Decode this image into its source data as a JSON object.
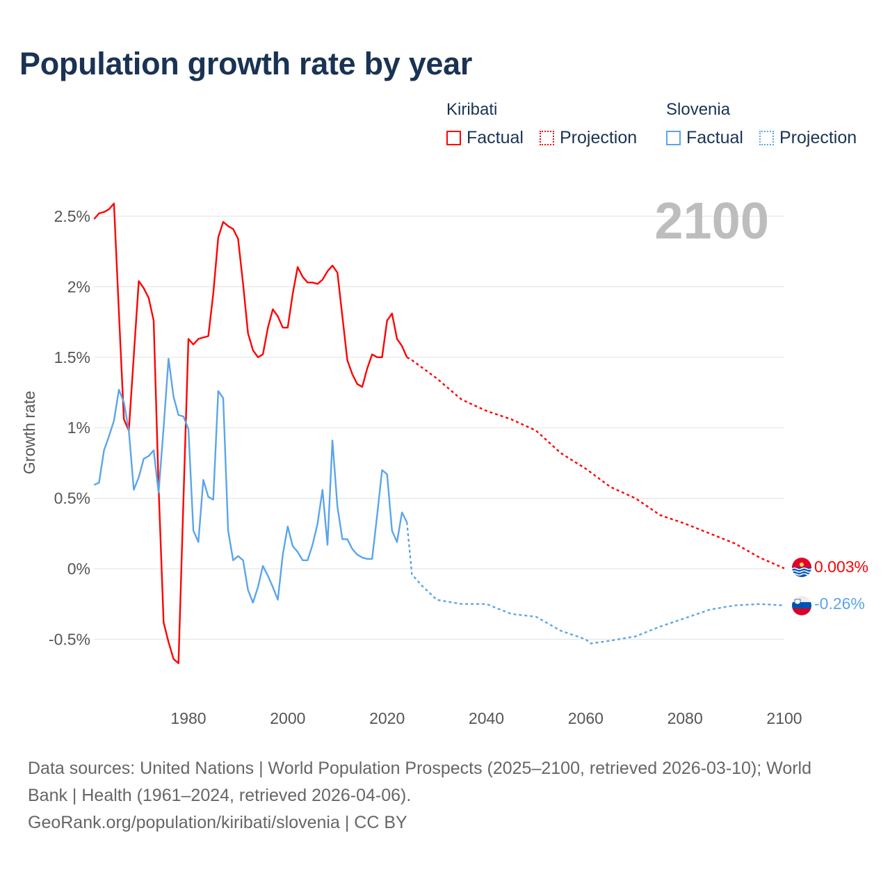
{
  "title": "Population growth rate by year",
  "legend": {
    "groups": [
      {
        "country": "Kiribati",
        "factual": "Factual",
        "projection": "Projection",
        "color": "#ff0000"
      },
      {
        "country": "Slovenia",
        "factual": "Factual",
        "projection": "Projection",
        "color": "#5aa5ea"
      }
    ]
  },
  "year_display": "2100",
  "end_labels": {
    "kiribati": "0.003%",
    "slovenia": "-0.26%"
  },
  "footer": {
    "sources": "Data sources: United Nations | World Population Prospects (2025–2100, retrieved 2026-03-10); World Bank | Health (1961–2024, retrieved 2026-04-06).",
    "attribution": "GeoRank.org/population/kiribati/slovenia | CC BY"
  },
  "chart_data": {
    "type": "line",
    "title": "Population growth rate by year",
    "xlabel": "",
    "ylabel": "Growth rate",
    "xlim": [
      1961,
      2100
    ],
    "ylim": [
      -0.8,
      2.7
    ],
    "x_ticks": [
      1980,
      2000,
      2020,
      2040,
      2060,
      2080,
      2100
    ],
    "x_tick_labels": [
      "1980",
      "2000",
      "2020",
      "2040",
      "2060",
      "2080",
      "2100"
    ],
    "y_ticks": [
      -0.5,
      0,
      0.5,
      1,
      1.5,
      2,
      2.5
    ],
    "y_tick_labels": [
      "-0.5%",
      "0%",
      "0.5%",
      "1%",
      "1.5%",
      "2%",
      "2.5%"
    ],
    "grid": true,
    "legend_position": "top-right",
    "factual_start_year": 1961,
    "series": [
      {
        "name": "Kiribati",
        "color": "#ff0000",
        "factual": [
          2.48,
          2.52,
          2.53,
          2.55,
          2.59,
          1.82,
          1.06,
          0.98,
          1.51,
          2.04,
          1.99,
          1.92,
          1.76,
          0.58,
          -0.38,
          -0.52,
          -0.64,
          -0.67,
          0.5,
          1.63,
          1.59,
          1.63,
          1.64,
          1.65,
          1.95,
          2.35,
          2.46,
          2.43,
          2.41,
          2.34,
          2.02,
          1.67,
          1.55,
          1.5,
          1.52,
          1.71,
          1.84,
          1.79,
          1.71,
          1.71,
          1.95,
          2.14,
          2.07,
          2.03,
          2.03,
          2.02,
          2.05,
          2.11,
          2.15,
          2.1,
          1.79,
          1.48,
          1.38,
          1.31,
          1.29,
          1.42,
          1.52,
          1.5,
          1.5,
          1.76,
          1.81,
          1.63,
          1.58,
          1.5
        ],
        "projection_years": [
          2024,
          2025,
          2030,
          2035,
          2040,
          2045,
          2050,
          2055,
          2060,
          2065,
          2070,
          2075,
          2080,
          2085,
          2090,
          2095,
          2100
        ],
        "projection": [
          1.5,
          1.48,
          1.35,
          1.2,
          1.12,
          1.06,
          0.98,
          0.82,
          0.71,
          0.58,
          0.5,
          0.38,
          0.32,
          0.25,
          0.18,
          0.08,
          0.003
        ]
      },
      {
        "name": "Slovenia",
        "color": "#5aa5ea",
        "factual": [
          0.595,
          0.61,
          0.84,
          0.94,
          1.05,
          1.27,
          1.18,
          0.98,
          0.56,
          0.65,
          0.78,
          0.8,
          0.84,
          0.54,
          1.0,
          1.49,
          1.22,
          1.09,
          1.08,
          0.99,
          0.27,
          0.19,
          0.63,
          0.51,
          0.49,
          1.26,
          1.21,
          0.27,
          0.06,
          0.09,
          0.06,
          -0.15,
          -0.24,
          -0.13,
          0.02,
          -0.05,
          -0.13,
          -0.22,
          0.1,
          0.3,
          0.16,
          0.12,
          0.06,
          0.06,
          0.17,
          0.32,
          0.56,
          0.17,
          0.91,
          0.44,
          0.21,
          0.21,
          0.14,
          0.1,
          0.08,
          0.07,
          0.07,
          0.38,
          0.7,
          0.67,
          0.27,
          0.19,
          0.4,
          0.33
        ],
        "projection_years": [
          2024,
          2025,
          2027,
          2030,
          2035,
          2040,
          2045,
          2050,
          2055,
          2060,
          2061,
          2065,
          2070,
          2075,
          2080,
          2085,
          2090,
          2095,
          2100
        ],
        "projection": [
          0.33,
          -0.04,
          -0.12,
          -0.22,
          -0.25,
          -0.25,
          -0.32,
          -0.34,
          -0.44,
          -0.5,
          -0.53,
          -0.51,
          -0.48,
          -0.41,
          -0.35,
          -0.29,
          -0.26,
          -0.25,
          -0.26
        ]
      }
    ]
  }
}
